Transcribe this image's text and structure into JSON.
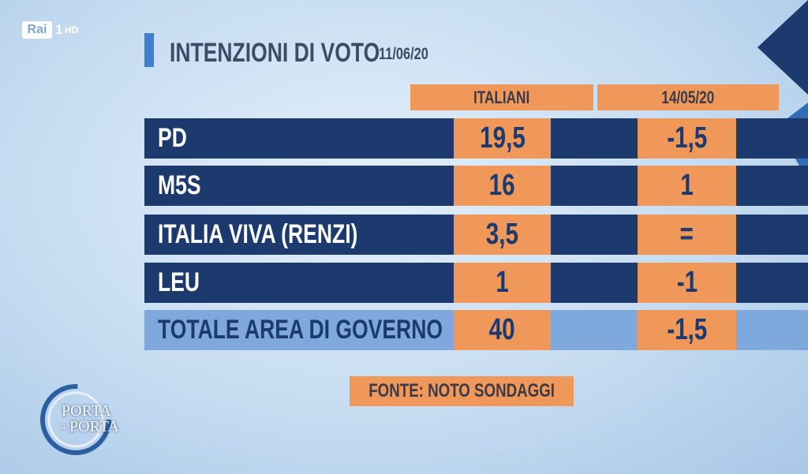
{
  "logo": {
    "brand": "Rai",
    "channel": "1",
    "quality": "HD"
  },
  "header": {
    "title": "INTENZIONI DI VOTO",
    "date": "11/06/20"
  },
  "table": {
    "columns": [
      "ITALIANI",
      "14/05/20"
    ],
    "rows": [
      [
        "PD",
        "19,5",
        "-1,5"
      ],
      [
        "M5S",
        "16",
        "1"
      ],
      [
        "ITALIA VIVA (RENZI)",
        "3,5",
        "="
      ],
      [
        "LEU",
        "1",
        "-1"
      ],
      [
        "TOTALE AREA DI GOVERNO",
        "40",
        "-1,5"
      ]
    ]
  },
  "source": "FONTE: NOTO SONDAGGI",
  "show_logo": {
    "line1": "PORTA",
    "connector": "a",
    "line2": "PORTA"
  }
}
